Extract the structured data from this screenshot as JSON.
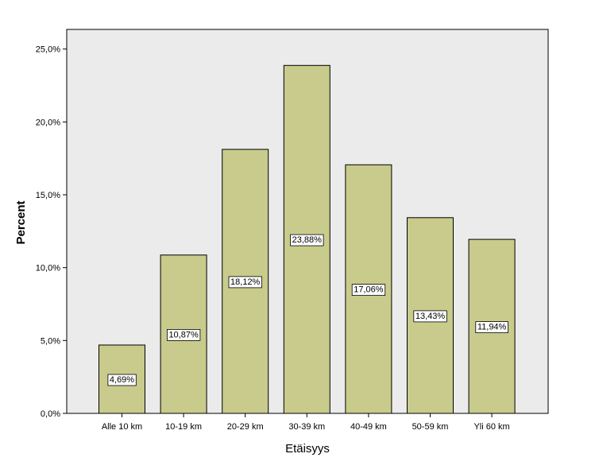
{
  "chart_data": {
    "type": "bar",
    "title": "",
    "xlabel": "Etäisyys",
    "ylabel": "Percent",
    "categories": [
      "Alle 10 km",
      "10-19 km",
      "20-29 km",
      "30-39 km",
      "40-49 km",
      "50-59 km",
      "Yli 60 km"
    ],
    "values": [
      4.69,
      10.87,
      18.12,
      23.88,
      17.06,
      13.43,
      11.94
    ],
    "data_labels": [
      "4,69%",
      "10,87%",
      "18,12%",
      "23,88%",
      "17,06%",
      "13,43%",
      "11,94%"
    ],
    "yticks": [
      0,
      5,
      10,
      15,
      20,
      25
    ],
    "ytick_labels": [
      "0,0%",
      "5,0%",
      "10,0%",
      "15,0%",
      "20,0%",
      "25,0%"
    ],
    "ylim": [
      0,
      25
    ],
    "grid": false,
    "legend": "none",
    "colors": {
      "plot_background": "#ebebeb",
      "bar_fill": "#c8cb8b",
      "bar_stroke": "#000000",
      "label_background": "#ffffff"
    }
  }
}
